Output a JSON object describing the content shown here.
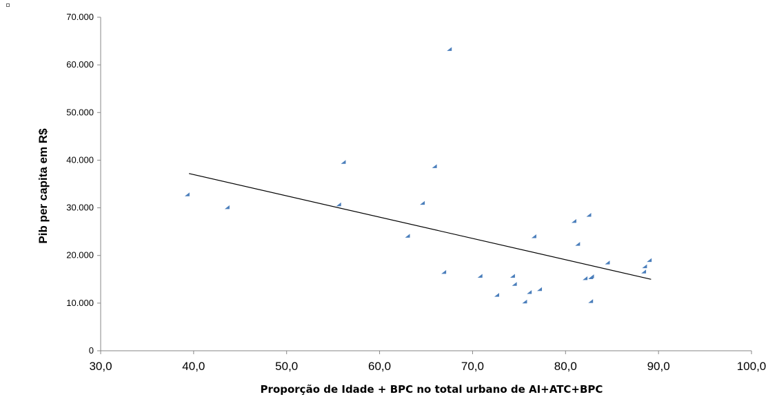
{
  "chart_data": {
    "type": "scatter",
    "title": "",
    "xlabel": "Proporção de Idade + BPC no total urbano de AI+ATC+BPC",
    "ylabel": "Pib per capita em R$",
    "xlim": [
      30,
      100
    ],
    "ylim": [
      0,
      70000
    ],
    "x_ticks": [
      "30,0",
      "40,0",
      "50,0",
      "60,0",
      "70,0",
      "80,0",
      "90,0",
      "100,0"
    ],
    "y_ticks": [
      "0",
      "10.000",
      "20.000",
      "30.000",
      "40.000",
      "50.000",
      "60.000",
      "70.000"
    ],
    "grid": false,
    "marker_color": "#4a7ebb",
    "trendline": {
      "x": [
        39.5,
        89.2
      ],
      "y": [
        37200,
        15000
      ],
      "color": "#000000"
    },
    "series": [
      {
        "x": [
          39.3,
          43.6,
          55.6,
          56.1,
          63.0,
          64.6,
          65.9,
          66.9,
          67.5,
          70.8,
          72.6,
          74.3,
          74.5,
          75.6,
          76.1,
          76.6,
          77.2,
          80.9,
          81.3,
          82.1,
          82.5,
          82.7,
          82.7,
          82.8,
          84.5,
          88.4,
          88.5,
          89.0
        ],
        "y": [
          32800,
          30100,
          30700,
          39600,
          24100,
          31000,
          38700,
          16500,
          63300,
          15700,
          11700,
          15700,
          14000,
          10300,
          12300,
          24000,
          12900,
          27200,
          22400,
          15200,
          28500,
          10400,
          15400,
          15600,
          18500,
          16600,
          17700,
          19000
        ]
      }
    ]
  }
}
